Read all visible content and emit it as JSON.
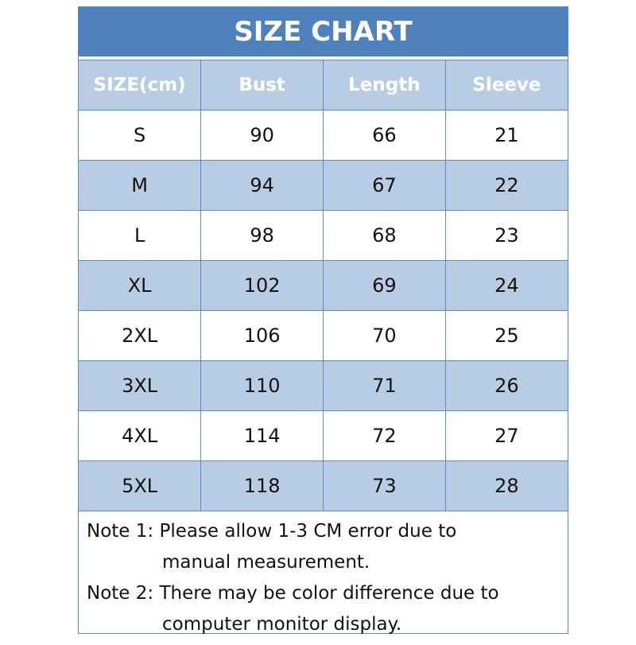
{
  "title": "SIZE CHART",
  "headers": [
    "SIZE(cm)",
    "Bust",
    "Length",
    "Sleeve"
  ],
  "rows": [
    [
      "S",
      "90",
      "66",
      "21"
    ],
    [
      "M",
      "94",
      "67",
      "22"
    ],
    [
      "L",
      "98",
      "68",
      "23"
    ],
    [
      "XL",
      "102",
      "69",
      "24"
    ],
    [
      "2XL",
      "106",
      "70",
      "25"
    ],
    [
      "3XL",
      "110",
      "71",
      "26"
    ],
    [
      "4XL",
      "114",
      "72",
      "27"
    ],
    [
      "5XL",
      "118",
      "73",
      "28"
    ]
  ],
  "notes": [
    {
      "line1": "Note 1: Please allow 1-3 CM error due to",
      "line2": "manual measurement."
    },
    {
      "line1": "Note 2: There may be color difference due to",
      "line2": "computer monitor display."
    }
  ],
  "colors": {
    "title_bg": "#4f81bd",
    "header_bg": "#b8cce4",
    "border": "#5b8ac6"
  }
}
